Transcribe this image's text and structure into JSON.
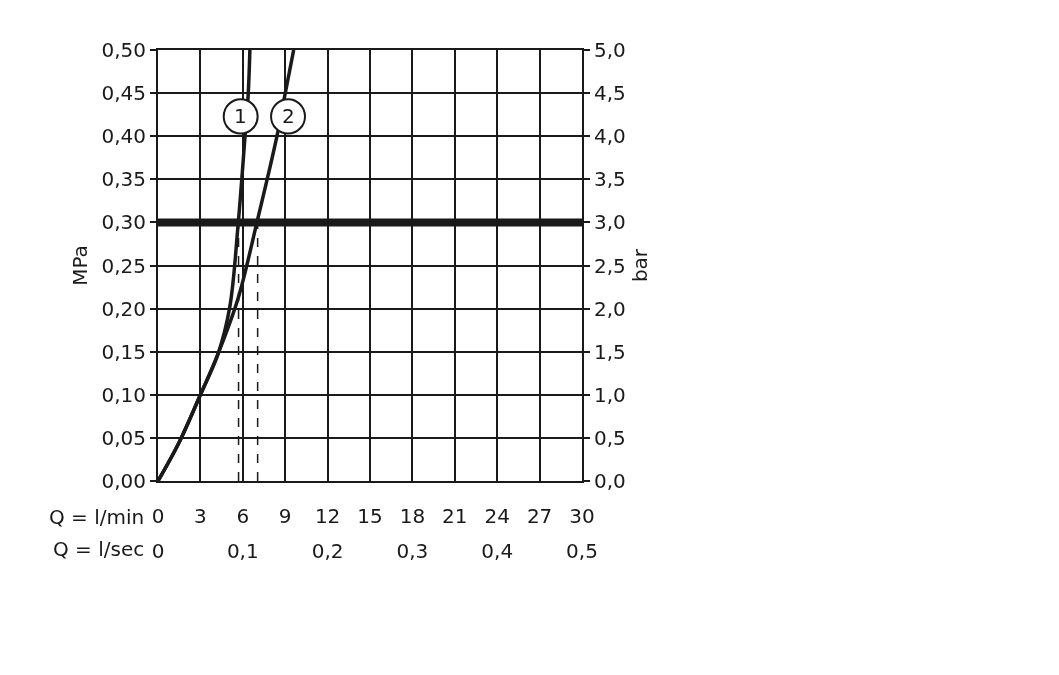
{
  "chart_data": {
    "type": "line",
    "xlabel": "Q = l/min",
    "x2label": "Q = l/sec",
    "ylabel": "MPa",
    "y2label": "bar",
    "series": [
      {
        "color": "#1a1a1a",
        "x": [
          0,
          1.5,
          3,
          4.26,
          5.08,
          5.67,
          6.15,
          6.38,
          6.5
        ],
        "values": [
          0,
          0.045,
          0.1,
          0.148,
          0.202,
          0.298,
          0.398,
          0.448,
          0.5
        ]
      },
      {
        "color": "#1a1a1a",
        "x": [
          0,
          1.5,
          3,
          4.26,
          5.67,
          6.97,
          8.39,
          8.98,
          9.6
        ],
        "values": [
          0,
          0.045,
          0.1,
          0.148,
          0.212,
          0.298,
          0.398,
          0.448,
          0.5
        ]
      },
      {
        "color": "#1a1a1a",
        "x": [
          5.7,
          5.7
        ],
        "values": [
          0,
          0.3
        ],
        "line_style": "dashed"
      },
      {
        "color": "#1a1a1a",
        "x": [
          7.05,
          7.05
        ],
        "values": [
          0,
          0.3
        ],
        "line_style": "dashed"
      }
    ],
    "ref_lines": [
      {
        "axis": "y",
        "value": 0.3,
        "color": "#1a1a1a"
      }
    ],
    "annotations": [
      {
        "text": "1",
        "x": 5.85,
        "y": 0.423
      },
      {
        "text": "2",
        "x": 9.2,
        "y": 0.423
      }
    ],
    "xlim": [
      0,
      30
    ],
    "xticks": [
      0,
      3,
      6,
      9,
      12,
      15,
      18,
      21,
      24,
      27,
      30
    ],
    "x2lim": [
      0,
      0.5
    ],
    "x2ticks": [
      {
        "value": 0,
        "label": "0"
      },
      {
        "value": 0.1,
        "label": "0,1"
      },
      {
        "value": 0.2,
        "label": "0,2"
      },
      {
        "value": 0.3,
        "label": "0,3"
      },
      {
        "value": 0.4,
        "label": "0,4"
      },
      {
        "value": 0.5,
        "label": "0,5"
      }
    ],
    "ylim": [
      0,
      0.5
    ],
    "yticks": [
      {
        "value": 0,
        "label": "0,00"
      },
      {
        "value": 0.05,
        "label": "0,05"
      },
      {
        "value": 0.1,
        "label": "0,10"
      },
      {
        "value": 0.15,
        "label": "0,15"
      },
      {
        "value": 0.2,
        "label": "0,20"
      },
      {
        "value": 0.25,
        "label": "0,25"
      },
      {
        "value": 0.3,
        "label": "0,30"
      },
      {
        "value": 0.35,
        "label": "0,35"
      },
      {
        "value": 0.4,
        "label": "0,40"
      },
      {
        "value": 0.45,
        "label": "0,45"
      },
      {
        "value": 0.5,
        "label": "0,50"
      }
    ],
    "y2lim": [
      0,
      5
    ],
    "y2ticks": [
      {
        "value": 0,
        "label": "0,0"
      },
      {
        "value": 0.5,
        "label": "0,5"
      },
      {
        "value": 1,
        "label": "1,0"
      },
      {
        "value": 1.5,
        "label": "1,5"
      },
      {
        "value": 2,
        "label": "2,0"
      },
      {
        "value": 2.5,
        "label": "2,5"
      },
      {
        "value": 3,
        "label": "3,0"
      },
      {
        "value": 3.5,
        "label": "3,5"
      },
      {
        "value": 4,
        "label": "4,0"
      },
      {
        "value": 4.5,
        "label": "4,5"
      },
      {
        "value": 5,
        "label": "5,0"
      }
    ],
    "grid": true,
    "marker": "none",
    "line_style": "solid"
  }
}
